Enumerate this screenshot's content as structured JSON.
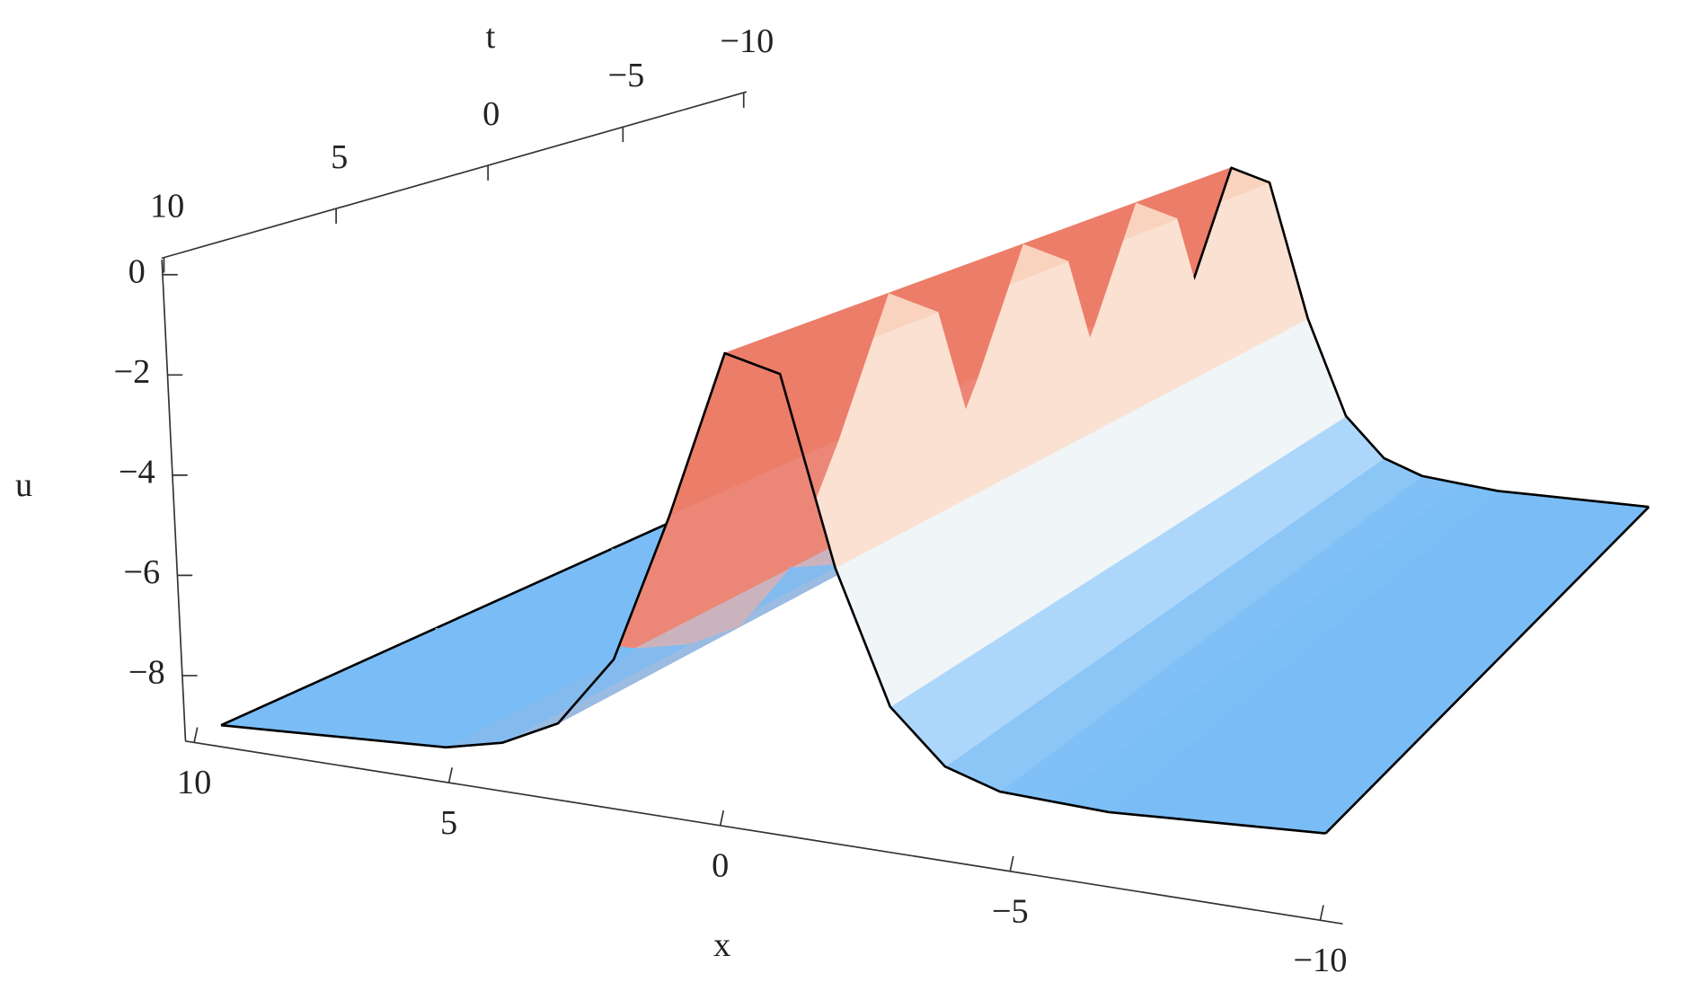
{
  "chart_data": {
    "type": "surface",
    "x_label": "x",
    "t_label": "t",
    "u_label": "u",
    "x": [
      -10,
      -9,
      -8,
      -7,
      -6,
      -5,
      -4,
      -3,
      -2,
      -1,
      0,
      1,
      2,
      3,
      4,
      5,
      6,
      7,
      8,
      9,
      10
    ],
    "t": [
      -10,
      -5,
      0,
      5,
      10
    ],
    "values": [
      [
        -9,
        -9,
        -9,
        -9,
        -9,
        -8.9,
        -8.8,
        -8.4,
        -7.3,
        -4.6,
        -0.8,
        -0.5,
        -3.9,
        -6.9,
        -8.3,
        -8.8,
        -9,
        -9,
        -9,
        -9,
        -9
      ],
      [
        -9,
        -9,
        -9,
        -9,
        -9,
        -8.9,
        -8.8,
        -8.4,
        -7.3,
        -4.6,
        -0.8,
        -0.5,
        -3.9,
        -6.9,
        -8.3,
        -8.8,
        -9,
        -9,
        -9,
        -9,
        -9
      ],
      [
        -9,
        -9,
        -9,
        -9,
        -9,
        -8.9,
        -8.8,
        -8.4,
        -7.3,
        -4.6,
        -0.8,
        -0.5,
        -3.9,
        -6.9,
        -8.3,
        -8.8,
        -9,
        -9,
        -9,
        -9,
        -9
      ],
      [
        -9,
        -9,
        -9,
        -9,
        -9,
        -8.9,
        -8.8,
        -8.4,
        -7.3,
        -4.6,
        -0.8,
        -0.5,
        -3.9,
        -6.9,
        -8.3,
        -8.8,
        -9,
        -9,
        -9,
        -9,
        -9
      ],
      [
        -9,
        -9,
        -9,
        -9,
        -9,
        -8.9,
        -8.8,
        -8.4,
        -7.3,
        -4.6,
        -0.8,
        -0.5,
        -3.9,
        -6.9,
        -8.3,
        -8.8,
        -9,
        -9,
        -9,
        -9,
        -9
      ]
    ],
    "xlim": [
      -10,
      10
    ],
    "tlim": [
      -10,
      10
    ],
    "ulim": [
      -9.3,
      0.3
    ],
    "xticks": [
      {
        "value": -10,
        "label": "−10"
      },
      {
        "value": -5,
        "label": "−5"
      },
      0,
      5,
      10
    ],
    "tticks": [
      {
        "value": -10,
        "label": "−10"
      },
      {
        "value": -5,
        "label": "−5"
      },
      0,
      5,
      10
    ],
    "uticks": [
      {
        "value": -8,
        "label": "−8"
      },
      {
        "value": -6,
        "label": "−6"
      },
      {
        "value": -4,
        "label": "−4"
      },
      {
        "value": -2,
        "label": "−2"
      },
      0
    ],
    "colors": {
      "low": "#6cb6f5",
      "mid": "#eef8fe",
      "high": "#fbe6d8",
      "top": "#f8cdb6",
      "flank": "#ea6c58",
      "edge": "#000000"
    }
  }
}
